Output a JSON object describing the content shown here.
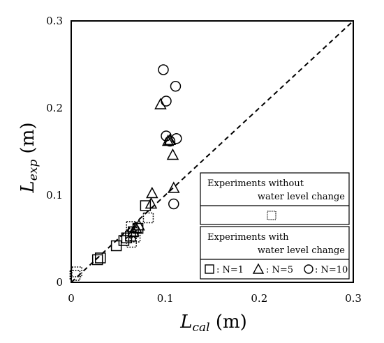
{
  "chart_data": {
    "type": "scatter",
    "xlabel": {
      "main": "L",
      "sub": "cal",
      "unit": " (m)"
    },
    "ylabel": {
      "main": "L",
      "sub": "exp",
      "unit": " (m)"
    },
    "xlim": [
      0,
      0.3
    ],
    "ylim": [
      0,
      0.3
    ],
    "x_ticks": [
      "0",
      "0.1",
      "0.2",
      "0.3"
    ],
    "y_ticks": [
      "0",
      "0.1",
      "0.2",
      "0.3"
    ],
    "reference_line": "y = x (dashed)",
    "grid": false,
    "legend": {
      "placement": "lower-right",
      "group1_title_line1": "Experiments without",
      "group1_title_line2": "water level change",
      "group2_title_line1": "Experiments with",
      "group2_title_line2": "water level change",
      "entry_n1": ": N=1",
      "entry_n5": ": N=5",
      "entry_n10": ": N=10"
    },
    "series": [
      {
        "marker": "square-dotted",
        "points": [
          [
            0.004,
            0.008
          ],
          [
            0.006,
            0.012
          ],
          [
            0.064,
            0.064
          ],
          [
            0.066,
            0.058
          ],
          [
            0.068,
            0.052
          ],
          [
            0.064,
            0.046
          ],
          [
            0.082,
            0.074
          ]
        ]
      },
      {
        "marker": "square",
        "points": [
          [
            0.028,
            0.026
          ],
          [
            0.031,
            0.028
          ],
          [
            0.048,
            0.042
          ],
          [
            0.056,
            0.048
          ],
          [
            0.059,
            0.051
          ],
          [
            0.063,
            0.053
          ],
          [
            0.066,
            0.058
          ],
          [
            0.071,
            0.062
          ],
          [
            0.079,
            0.088
          ]
        ]
      },
      {
        "marker": "triangle",
        "points": [
          [
            0.066,
            0.058
          ],
          [
            0.069,
            0.062
          ],
          [
            0.072,
            0.065
          ],
          [
            0.085,
            0.09
          ],
          [
            0.086,
            0.102
          ],
          [
            0.095,
            0.204
          ],
          [
            0.103,
            0.162
          ],
          [
            0.105,
            0.163
          ],
          [
            0.108,
            0.146
          ],
          [
            0.109,
            0.108
          ]
        ]
      },
      {
        "marker": "circle",
        "points": [
          [
            0.098,
            0.244
          ],
          [
            0.101,
            0.208
          ],
          [
            0.101,
            0.168
          ],
          [
            0.105,
            0.162
          ],
          [
            0.111,
            0.225
          ],
          [
            0.112,
            0.165
          ],
          [
            0.109,
            0.09
          ]
        ]
      }
    ]
  }
}
